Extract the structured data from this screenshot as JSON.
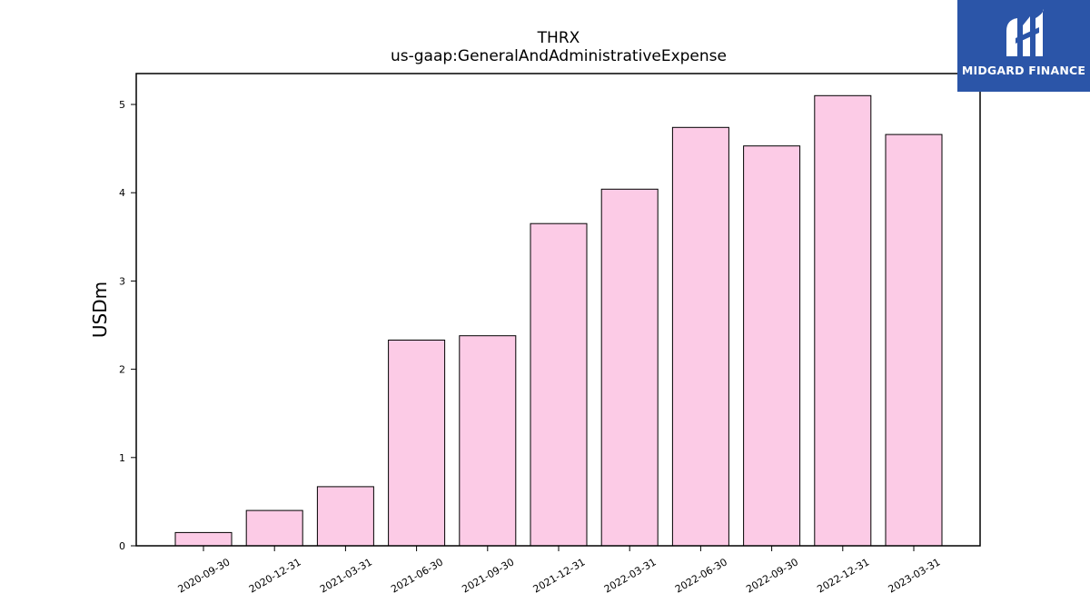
{
  "chart_data": {
    "type": "bar",
    "title": "THRX",
    "subtitle": "us-gaap:GeneralAndAdministrativeExpense",
    "ylabel": "USDm",
    "xlabel": "",
    "categories": [
      "2020-09-30",
      "2020-12-31",
      "2021-03-31",
      "2021-06-30",
      "2021-09-30",
      "2021-12-31",
      "2022-03-31",
      "2022-06-30",
      "2022-09-30",
      "2022-12-31",
      "2023-03-31"
    ],
    "values": [
      0.15,
      0.4,
      0.67,
      2.33,
      2.38,
      3.65,
      4.04,
      4.74,
      4.53,
      5.1,
      4.66
    ],
    "ylim": [
      0,
      5.35
    ],
    "yticks": [
      0,
      1,
      2,
      3,
      4,
      5
    ],
    "bar_color": "#fccbe6",
    "edge_color": "#000000",
    "grid": false,
    "legend": "none"
  },
  "logo": {
    "text": "MIDGARD FINANCE",
    "background": "#2b55a8"
  }
}
